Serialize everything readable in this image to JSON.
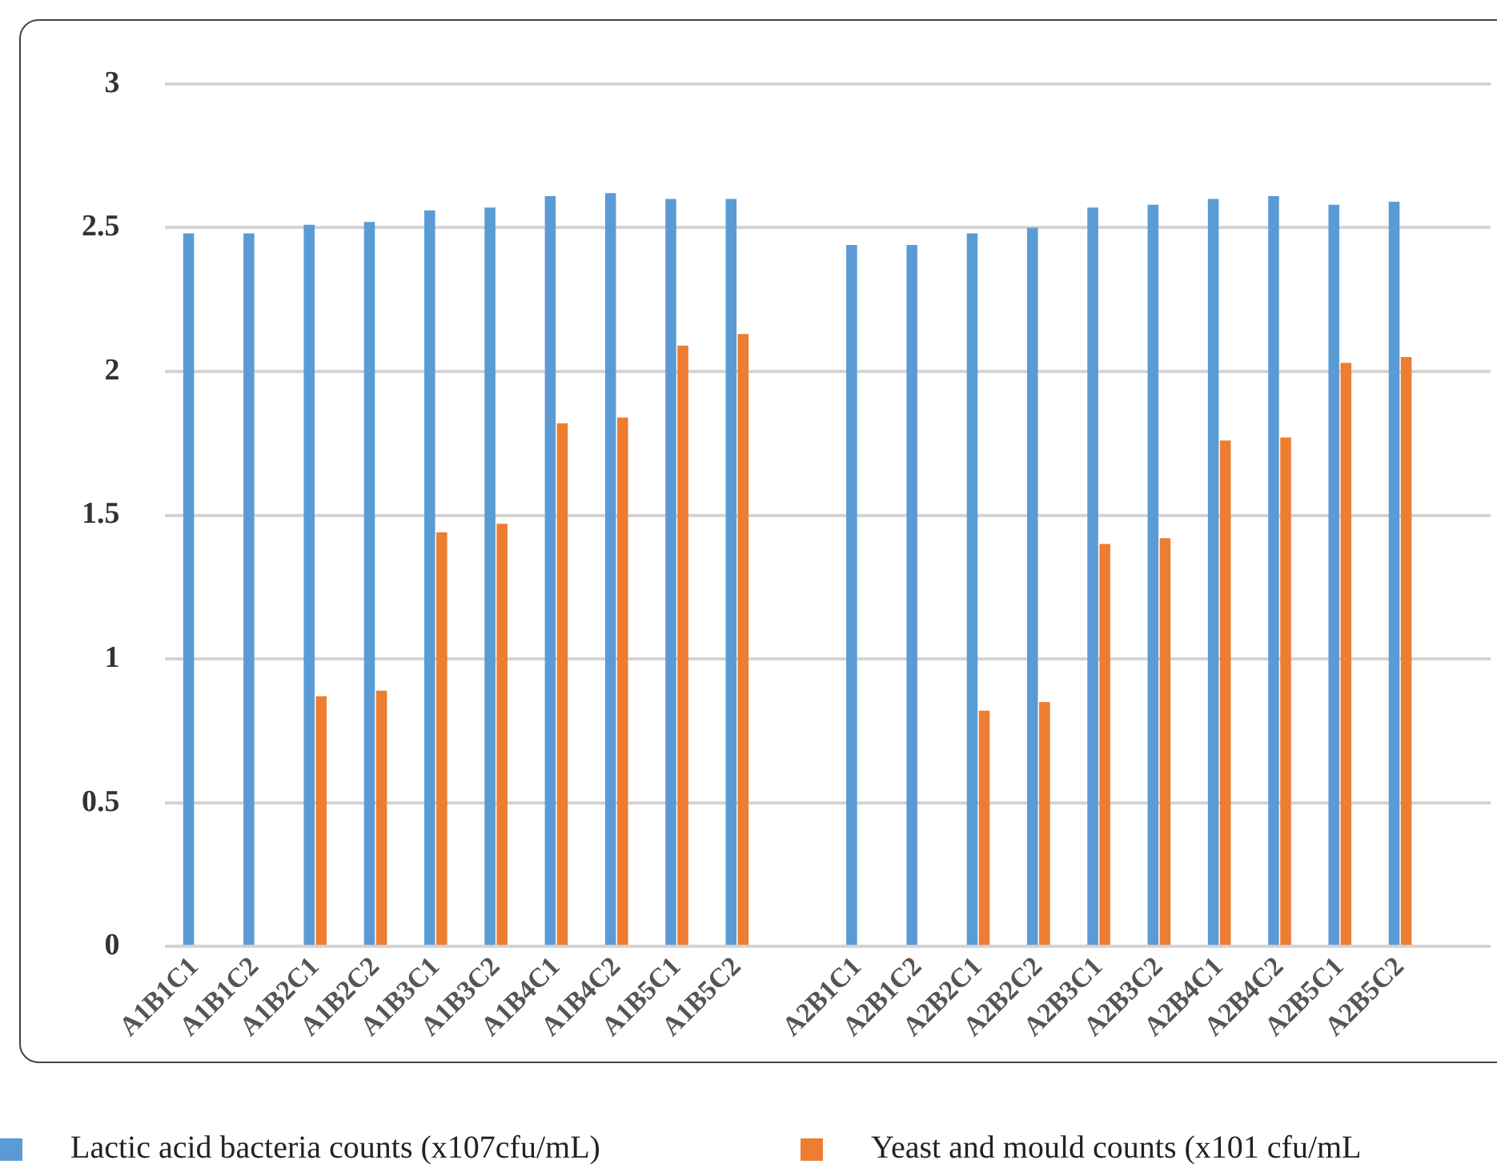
{
  "chart_data": {
    "type": "bar",
    "categories": [
      "A1B1C1",
      "A1B1C2",
      "A1B2C1",
      "A1B2C2",
      "A1B3C1",
      "A1B3C2",
      "A1B4C1",
      "A1B4C2",
      "A1B5C1",
      "A1B5C2",
      null,
      "A2B1C1",
      "A2B1C2",
      "A2B2C1",
      "A2B2C2",
      "A2B3C1",
      "A2B3C2",
      "A2B4C1",
      "A2B4C2",
      "A2B5C1",
      "A2B5C2",
      null
    ],
    "series": [
      {
        "name": "Lactic acid bacteria counts (x107cfu/mL)",
        "color": "#5b9bd5",
        "values": [
          2.48,
          2.48,
          2.51,
          2.52,
          2.56,
          2.57,
          2.61,
          2.62,
          2.6,
          2.6,
          null,
          2.44,
          2.44,
          2.48,
          2.5,
          2.57,
          2.58,
          2.6,
          2.61,
          2.58,
          2.59,
          null
        ]
      },
      {
        "name": "Yeast and mould counts (x101 cfu/mL",
        "color": "#ed7d31",
        "values": [
          null,
          null,
          0.87,
          0.89,
          1.44,
          1.47,
          1.82,
          1.84,
          2.09,
          2.13,
          null,
          null,
          null,
          0.82,
          0.85,
          1.4,
          1.42,
          1.76,
          1.77,
          2.03,
          2.05,
          null
        ]
      }
    ],
    "ylim": [
      0,
      3
    ],
    "yticks": [
      0,
      0.5,
      1,
      1.5,
      2,
      2.5,
      3
    ],
    "grid": "y",
    "legend": "bottom"
  }
}
